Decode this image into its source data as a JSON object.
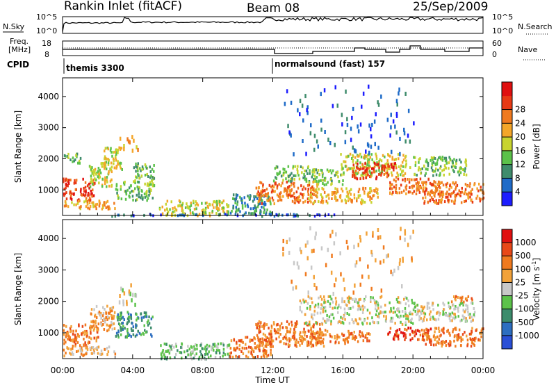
{
  "header": {
    "title": "Rankin Inlet (fitACF)",
    "beam": "Beam 08",
    "date": "25/Sep/2009"
  },
  "noise_panel": {
    "left_label": "N.Sky",
    "right_label": "N.Search",
    "left_ticks": [
      "10^5",
      "10^0"
    ],
    "right_ticks": [
      "10^5",
      "10^0"
    ]
  },
  "freq_panel": {
    "left_label_1": "Freq.",
    "left_label_2": "[MHz]",
    "right_label": "Nave",
    "left_ticks": [
      "18",
      "8"
    ],
    "right_ticks": [
      "60",
      "0"
    ]
  },
  "cpid": {
    "label": "CPID",
    "modes": [
      {
        "name": "themis 3300",
        "start_hour": 0
      },
      {
        "name": "normalsound (fast) 157",
        "start_hour": 12
      }
    ]
  },
  "x_axis": {
    "label": "Time UT",
    "ticks": [
      "00:00",
      "04:00",
      "08:00",
      "12:00",
      "16:00",
      "20:00",
      "00:00"
    ]
  },
  "chart_data": [
    {
      "type": "heatmap",
      "quantity": "power",
      "ylabel": "Slant Range [km]",
      "yticks": [
        "1000",
        "2000",
        "3000",
        "4000"
      ],
      "ylim": [
        180,
        4600
      ],
      "xlim_hours": [
        0,
        24
      ],
      "colorbar": {
        "label": "Power [dB]",
        "ticks": [
          "4",
          "8",
          "12",
          "16",
          "20",
          "24",
          "28"
        ],
        "colors": [
          "#1d1dff",
          "#1f6bc8",
          "#3f8c6c",
          "#5cc24a",
          "#c8d430",
          "#f4a629",
          "#f07a1f",
          "#e83a15",
          "#e01010"
        ]
      },
      "regions": [
        {
          "t0": 0.0,
          "t1": 1.8,
          "r0": 700,
          "r1": 1400,
          "level": 7
        },
        {
          "t0": 0.0,
          "t1": 3.0,
          "r0": 400,
          "r1": 700,
          "level": 5
        },
        {
          "t0": 0.0,
          "t1": 1.0,
          "r0": 1900,
          "r1": 2200,
          "level": 3
        },
        {
          "t0": 1.5,
          "t1": 2.8,
          "r0": 1100,
          "r1": 1900,
          "level": 4
        },
        {
          "t0": 2.3,
          "t1": 3.4,
          "r0": 1600,
          "r1": 2400,
          "level": 4
        },
        {
          "t0": 3.2,
          "t1": 4.3,
          "r0": 2300,
          "r1": 2800,
          "level": 5
        },
        {
          "t0": 3.0,
          "t1": 5.2,
          "r0": 700,
          "r1": 1300,
          "level": 3
        },
        {
          "t0": 4.0,
          "t1": 5.2,
          "r0": 1300,
          "r1": 1900,
          "level": 3
        },
        {
          "t0": 5.5,
          "t1": 9.5,
          "r0": 200,
          "r1": 700,
          "level": 4
        },
        {
          "t0": 9.5,
          "t1": 11.9,
          "r0": 250,
          "r1": 900,
          "level": 2
        },
        {
          "t0": 11.0,
          "t1": 14.5,
          "r0": 600,
          "r1": 1300,
          "level": 6
        },
        {
          "t0": 12.0,
          "t1": 14.0,
          "r0": 1300,
          "r1": 1800,
          "level": 3
        },
        {
          "t0": 14.0,
          "t1": 16.0,
          "r0": 1200,
          "r1": 1700,
          "level": 3
        },
        {
          "t0": 14.0,
          "t1": 18.0,
          "r0": 600,
          "r1": 1100,
          "level": 5
        },
        {
          "t0": 15.8,
          "t1": 19.8,
          "r0": 1500,
          "r1": 2200,
          "level": 4
        },
        {
          "t0": 16.5,
          "t1": 19.0,
          "r0": 1400,
          "r1": 1900,
          "level": 7
        },
        {
          "t0": 18.5,
          "t1": 21.5,
          "r0": 900,
          "r1": 1400,
          "level": 6
        },
        {
          "t0": 20.0,
          "t1": 23.0,
          "r0": 1500,
          "r1": 2100,
          "level": 3
        },
        {
          "t0": 20.5,
          "t1": 24.0,
          "r0": 600,
          "r1": 1300,
          "level": 6
        },
        {
          "t0": 12.5,
          "t1": 20.0,
          "r0": 2200,
          "r1": 4400,
          "level": 1
        },
        {
          "t0": 2.0,
          "t1": 16.0,
          "r0": 190,
          "r1": 260,
          "level": 1
        }
      ]
    },
    {
      "type": "heatmap",
      "quantity": "velocity",
      "ylabel": "Slant Range [km]",
      "yticks": [
        "1000",
        "2000",
        "3000",
        "4000"
      ],
      "ylim": [
        180,
        4600
      ],
      "xlim_hours": [
        0,
        24
      ],
      "colorbar": {
        "label": "Velocity [m s^-1]",
        "ticks": [
          "1000",
          "500",
          "100",
          "25",
          "-25",
          "-100",
          "-500",
          "-1000"
        ],
        "colors": [
          "#2a4fd6",
          "#2d6ec0",
          "#3c8c6c",
          "#5cc24a",
          "#c8c8c8",
          "#f2a23a",
          "#f07a1f",
          "#e84818",
          "#e01010"
        ]
      },
      "regions": [
        {
          "t0": 0.0,
          "t1": 2.0,
          "r0": 600,
          "r1": 1300,
          "level": 6
        },
        {
          "t0": 0.0,
          "t1": 3.0,
          "r0": 300,
          "r1": 600,
          "level": 5
        },
        {
          "t0": 1.5,
          "t1": 3.0,
          "r0": 1100,
          "r1": 1900,
          "level": 5
        },
        {
          "t0": 3.0,
          "t1": 5.1,
          "r0": 900,
          "r1": 1700,
          "level": 2
        },
        {
          "t0": 3.2,
          "t1": 4.3,
          "r0": 1900,
          "r1": 2600,
          "level": 4
        },
        {
          "t0": 5.5,
          "t1": 9.5,
          "r0": 200,
          "r1": 700,
          "level": 3
        },
        {
          "t0": 9.5,
          "t1": 11.9,
          "r0": 250,
          "r1": 900,
          "level": 6
        },
        {
          "t0": 11.0,
          "t1": 15.0,
          "r0": 600,
          "r1": 1400,
          "level": 6
        },
        {
          "t0": 14.0,
          "t1": 17.5,
          "r0": 700,
          "r1": 1100,
          "level": 6
        },
        {
          "t0": 13.5,
          "t1": 20.0,
          "r0": 1300,
          "r1": 2200,
          "level": 4
        },
        {
          "t0": 20.0,
          "t1": 23.5,
          "r0": 1400,
          "r1": 2000,
          "level": 4
        },
        {
          "t0": 18.5,
          "t1": 21.0,
          "r0": 800,
          "r1": 1200,
          "level": 7
        },
        {
          "t0": 20.5,
          "t1": 24.0,
          "r0": 600,
          "r1": 1200,
          "level": 6
        },
        {
          "t0": 12.5,
          "t1": 20.0,
          "r0": 2300,
          "r1": 4400,
          "level": 5
        },
        {
          "t0": 22.0,
          "t1": 23.5,
          "r0": 2000,
          "r1": 2200,
          "level": 6
        }
      ]
    }
  ]
}
